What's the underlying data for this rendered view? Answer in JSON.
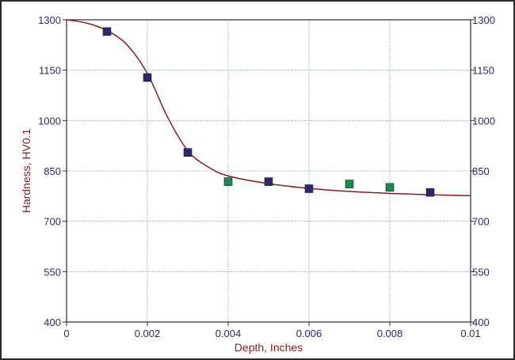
{
  "chart_data": {
    "type": "scatter",
    "title": "",
    "xlabel": "Depth, Inches",
    "ylabel": "Hardness, HV0.1",
    "xlim": [
      0,
      0.01
    ],
    "ylim": [
      400,
      1300
    ],
    "x_ticks": [
      "0",
      "0.002",
      "0.004",
      "0.006",
      "0.008",
      "0.01"
    ],
    "x_tick_values": [
      0,
      0.002,
      0.004,
      0.006,
      0.008,
      0.01
    ],
    "y_ticks": [
      "400",
      "550",
      "700",
      "850",
      "1000",
      "1150",
      "1300"
    ],
    "y_tick_values": [
      400,
      550,
      700,
      850,
      1000,
      1150,
      1300
    ],
    "grid": true,
    "right_axis_mirrors_left": true,
    "series": [
      {
        "marker": "square",
        "color": "#2b2a6e",
        "points": [
          [
            0.001,
            1265
          ],
          [
            0.002,
            1128
          ],
          [
            0.003,
            905
          ],
          [
            0.005,
            818
          ],
          [
            0.006,
            797
          ],
          [
            0.009,
            786
          ]
        ]
      },
      {
        "marker": "square",
        "color": "#1a8a4a",
        "points": [
          [
            0.004,
            818
          ],
          [
            0.007,
            811
          ],
          [
            0.008,
            801
          ]
        ]
      },
      {
        "type": "line",
        "color": "#8b1a1a",
        "points": [
          [
            0.0,
            1300
          ],
          [
            0.0005,
            1290
          ],
          [
            0.001,
            1268
          ],
          [
            0.0015,
            1225
          ],
          [
            0.002,
            1140
          ],
          [
            0.0025,
            1010
          ],
          [
            0.003,
            910
          ],
          [
            0.0035,
            862
          ],
          [
            0.004,
            835
          ],
          [
            0.005,
            812
          ],
          [
            0.006,
            798
          ],
          [
            0.007,
            789
          ],
          [
            0.008,
            783
          ],
          [
            0.009,
            779
          ],
          [
            0.01,
            776
          ]
        ]
      }
    ],
    "colors": {
      "axis_label": "#8b1a1a",
      "left_tick_label": "#2b2a6e",
      "right_tick_label": "#2b2a6e",
      "x_tick_label": "#2b2a6e",
      "grid": "#6e9e9e"
    }
  }
}
